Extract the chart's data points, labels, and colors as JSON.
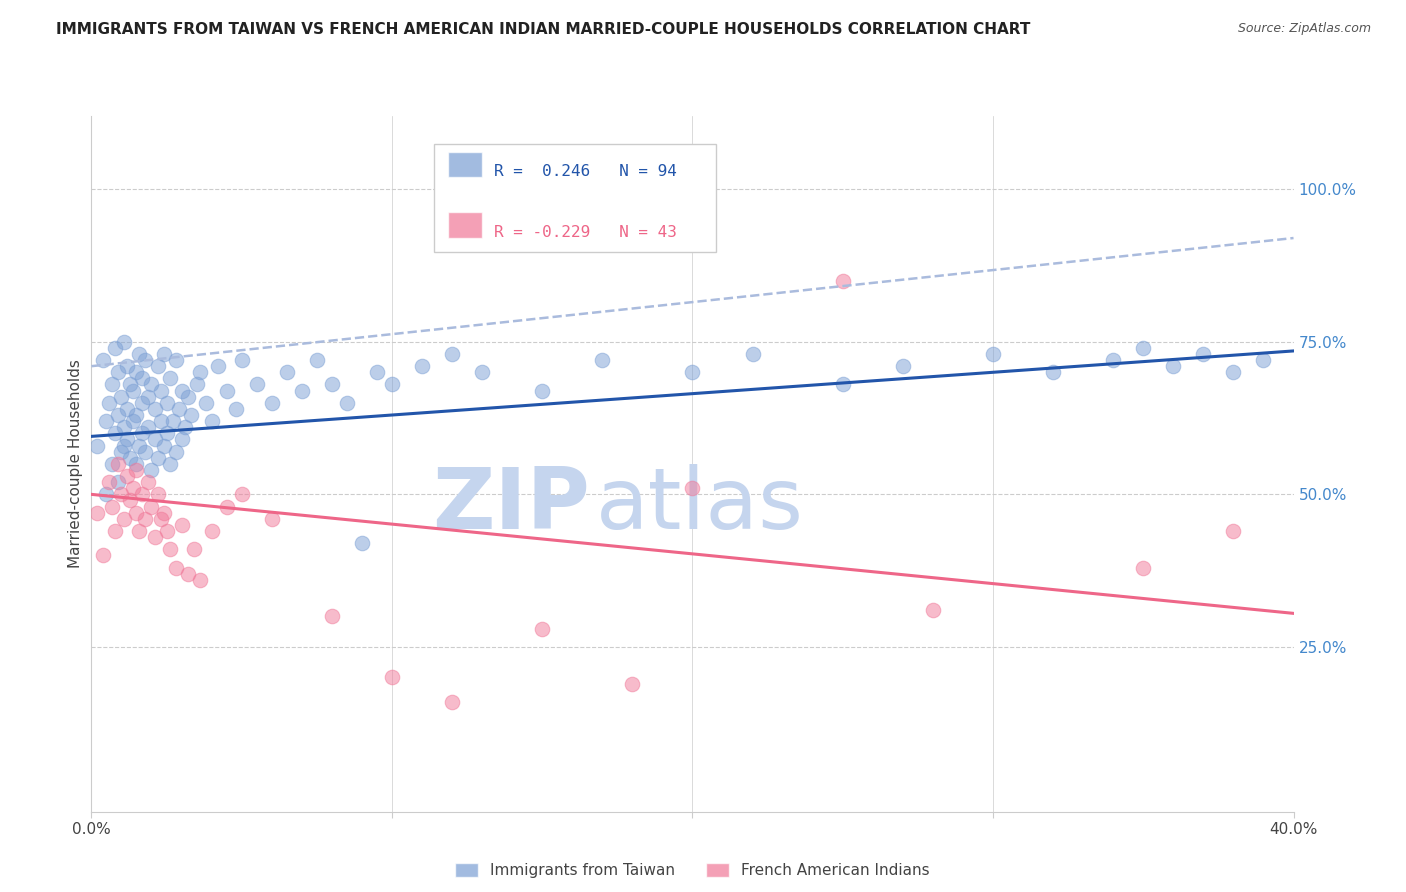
{
  "title": "IMMIGRANTS FROM TAIWAN VS FRENCH AMERICAN INDIAN MARRIED-COUPLE HOUSEHOLDS CORRELATION CHART",
  "source": "Source: ZipAtlas.com",
  "ylabel": "Married-couple Households",
  "ytick_labels": [
    "25.0%",
    "50.0%",
    "75.0%",
    "100.0%"
  ],
  "ytick_values": [
    0.25,
    0.5,
    0.75,
    1.0
  ],
  "xlim": [
    0.0,
    0.4
  ],
  "ylim": [
    -0.02,
    1.12
  ],
  "plot_ylim": [
    0.0,
    1.0
  ],
  "blue_r": "0.246",
  "blue_n": "94",
  "pink_r": "-0.229",
  "pink_n": "43",
  "blue_color": "#7b9fd4",
  "pink_color": "#f07898",
  "trend_blue_color": "#2255aa",
  "trend_pink_color": "#ee6688",
  "dashed_blue_color": "#aabbdd",
  "watermark_zip_color": "#c5d5ee",
  "watermark_atlas_color": "#c5d5ee",
  "background_color": "#ffffff",
  "grid_color": "#cccccc",
  "right_axis_color": "#4488cc",
  "legend_label_blue": "Immigrants from Taiwan",
  "legend_label_pink": "French American Indians",
  "blue_x": [
    0.002,
    0.004,
    0.005,
    0.006,
    0.007,
    0.008,
    0.008,
    0.009,
    0.009,
    0.01,
    0.01,
    0.011,
    0.011,
    0.012,
    0.012,
    0.012,
    0.013,
    0.013,
    0.014,
    0.014,
    0.015,
    0.015,
    0.015,
    0.016,
    0.016,
    0.017,
    0.017,
    0.017,
    0.018,
    0.018,
    0.019,
    0.019,
    0.02,
    0.02,
    0.021,
    0.021,
    0.022,
    0.022,
    0.023,
    0.023,
    0.024,
    0.024,
    0.025,
    0.025,
    0.026,
    0.026,
    0.027,
    0.028,
    0.028,
    0.029,
    0.03,
    0.03,
    0.031,
    0.032,
    0.033,
    0.035,
    0.036,
    0.038,
    0.04,
    0.042,
    0.045,
    0.048,
    0.05,
    0.055,
    0.06,
    0.065,
    0.07,
    0.075,
    0.08,
    0.085,
    0.09,
    0.095,
    0.1,
    0.11,
    0.12,
    0.13,
    0.15,
    0.17,
    0.2,
    0.22,
    0.25,
    0.27,
    0.3,
    0.32,
    0.34,
    0.35,
    0.36,
    0.37,
    0.38,
    0.39,
    0.005,
    0.007,
    0.009,
    0.011
  ],
  "blue_y": [
    0.58,
    0.72,
    0.62,
    0.65,
    0.68,
    0.6,
    0.74,
    0.63,
    0.7,
    0.57,
    0.66,
    0.61,
    0.75,
    0.59,
    0.64,
    0.71,
    0.56,
    0.68,
    0.62,
    0.67,
    0.55,
    0.63,
    0.7,
    0.58,
    0.73,
    0.6,
    0.65,
    0.69,
    0.57,
    0.72,
    0.61,
    0.66,
    0.54,
    0.68,
    0.59,
    0.64,
    0.56,
    0.71,
    0.62,
    0.67,
    0.58,
    0.73,
    0.6,
    0.65,
    0.55,
    0.69,
    0.62,
    0.57,
    0.72,
    0.64,
    0.59,
    0.67,
    0.61,
    0.66,
    0.63,
    0.68,
    0.7,
    0.65,
    0.62,
    0.71,
    0.67,
    0.64,
    0.72,
    0.68,
    0.65,
    0.7,
    0.67,
    0.72,
    0.68,
    0.65,
    0.42,
    0.7,
    0.68,
    0.71,
    0.73,
    0.7,
    0.67,
    0.72,
    0.7,
    0.73,
    0.68,
    0.71,
    0.73,
    0.7,
    0.72,
    0.74,
    0.71,
    0.73,
    0.7,
    0.72,
    0.5,
    0.55,
    0.52,
    0.58
  ],
  "pink_x": [
    0.002,
    0.004,
    0.006,
    0.007,
    0.008,
    0.009,
    0.01,
    0.011,
    0.012,
    0.013,
    0.014,
    0.015,
    0.015,
    0.016,
    0.017,
    0.018,
    0.019,
    0.02,
    0.021,
    0.022,
    0.023,
    0.024,
    0.025,
    0.026,
    0.028,
    0.03,
    0.032,
    0.034,
    0.036,
    0.04,
    0.045,
    0.05,
    0.06,
    0.08,
    0.1,
    0.12,
    0.15,
    0.18,
    0.2,
    0.25,
    0.28,
    0.35,
    0.38
  ],
  "pink_y": [
    0.47,
    0.4,
    0.52,
    0.48,
    0.44,
    0.55,
    0.5,
    0.46,
    0.53,
    0.49,
    0.51,
    0.47,
    0.54,
    0.44,
    0.5,
    0.46,
    0.52,
    0.48,
    0.43,
    0.5,
    0.46,
    0.47,
    0.44,
    0.41,
    0.38,
    0.45,
    0.37,
    0.41,
    0.36,
    0.44,
    0.48,
    0.5,
    0.46,
    0.3,
    0.2,
    0.16,
    0.28,
    0.19,
    0.51,
    0.85,
    0.31,
    0.38,
    0.44
  ],
  "blue_trend_x0": 0.0,
  "blue_trend_x1": 0.4,
  "blue_trend_y0": 0.595,
  "blue_trend_y1": 0.735,
  "pink_trend_x0": 0.0,
  "pink_trend_x1": 0.4,
  "pink_trend_y0": 0.5,
  "pink_trend_y1": 0.305,
  "dash_trend_x0": 0.0,
  "dash_trend_x1": 0.4,
  "dash_trend_y0": 0.71,
  "dash_trend_y1": 0.92
}
